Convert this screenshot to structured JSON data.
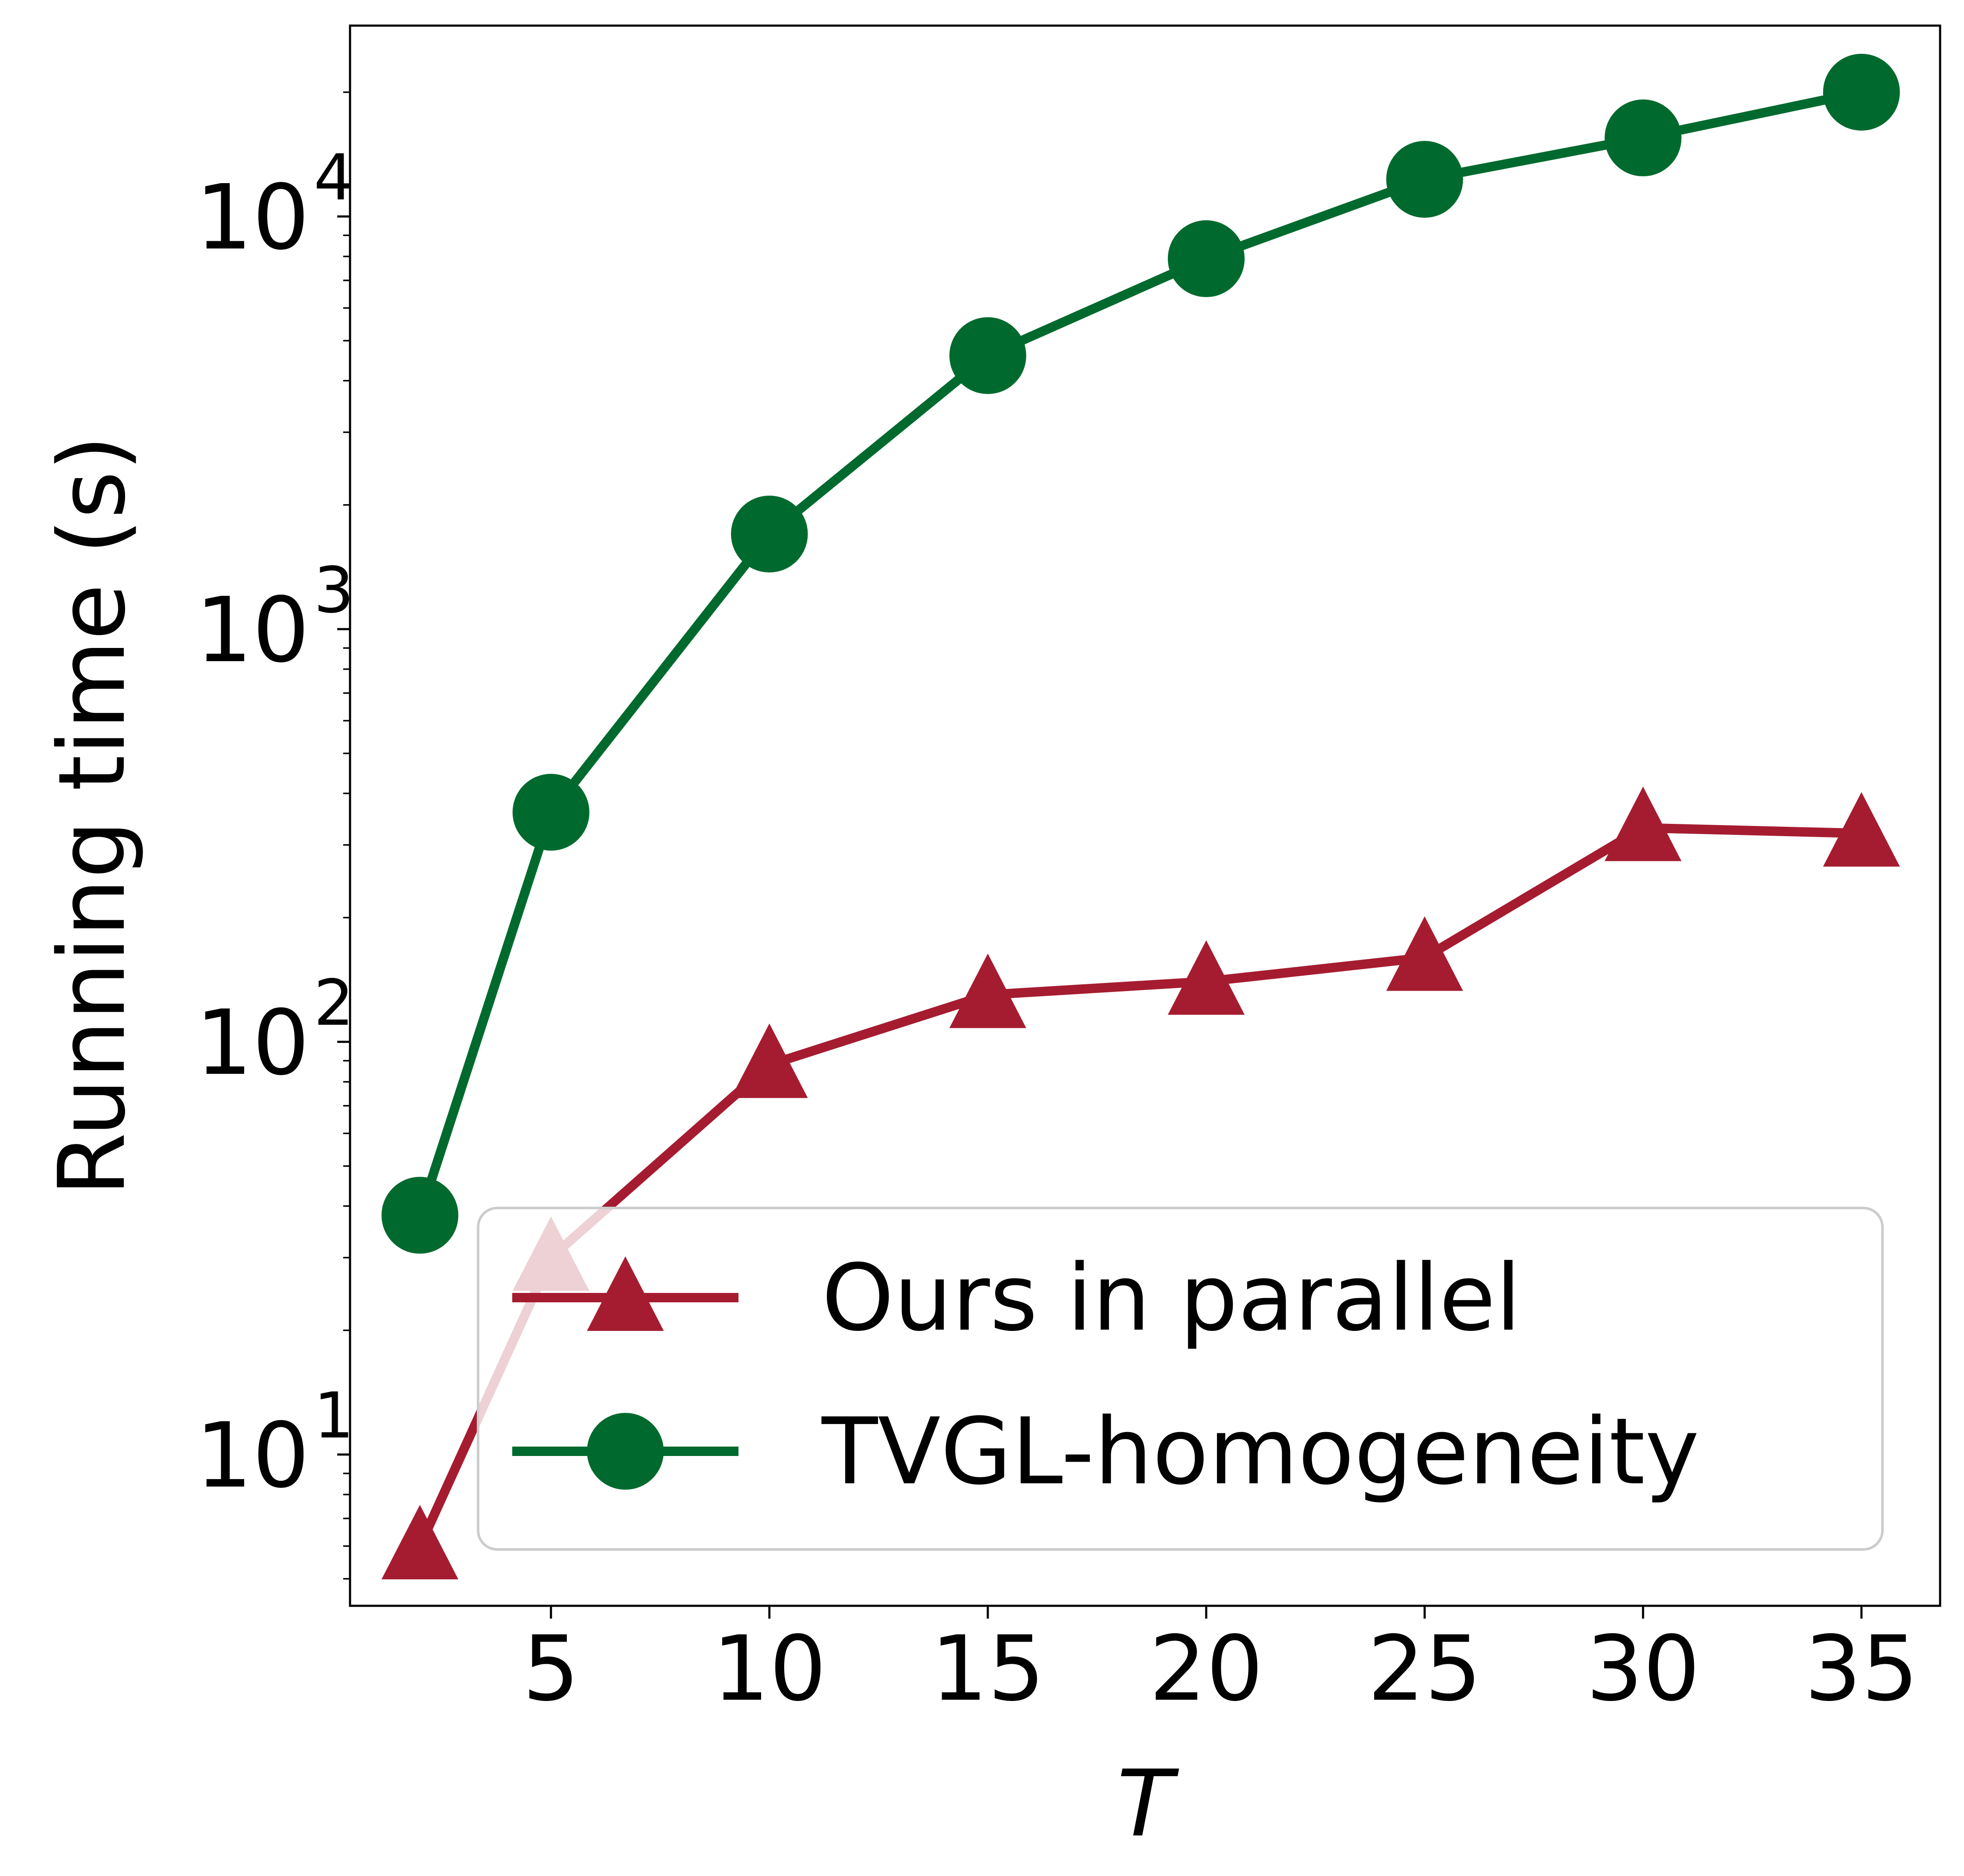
{
  "chart_data": {
    "type": "line",
    "title": "",
    "xlabel": "T",
    "ylabel": "Running time (s)",
    "yscale": "log",
    "xlim": [
      0.4,
      36.8
    ],
    "ylim": [
      4.3,
      29000
    ],
    "x_ticks": [
      5,
      10,
      15,
      20,
      25,
      30,
      35
    ],
    "x_tick_labels": [
      "5",
      "10",
      "15",
      "20",
      "25",
      "30",
      "35"
    ],
    "y_ticks": [
      10,
      100,
      1000,
      10000
    ],
    "y_tick_labels": [
      {
        "base": "10",
        "exp": "1"
      },
      {
        "base": "10",
        "exp": "2"
      },
      {
        "base": "10",
        "exp": "3"
      },
      {
        "base": "10",
        "exp": "4"
      }
    ],
    "grid": false,
    "legend_position": "lower-right",
    "series": [
      {
        "name": "Ours in parallel",
        "color": "#a51c30",
        "marker": "triangle",
        "x": [
          2,
          5,
          10,
          15,
          20,
          25,
          30,
          35
        ],
        "y": [
          6,
          30,
          88,
          130,
          140,
          160,
          330,
          320
        ]
      },
      {
        "name": "TVGL-homogeneity",
        "color": "#006a2e",
        "marker": "circle",
        "x": [
          2,
          5,
          10,
          15,
          20,
          25,
          30,
          35
        ],
        "y": [
          38,
          360,
          1700,
          4600,
          7900,
          12300,
          15500,
          20000
        ]
      }
    ]
  }
}
